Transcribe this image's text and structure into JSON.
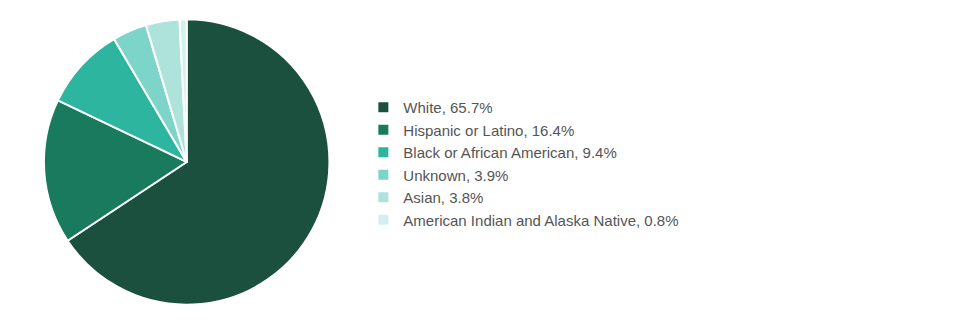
{
  "chart_data": {
    "type": "pie",
    "categories": [
      "White, 65.7%",
      "Hispanic or Latino, 16.4%",
      "Black or African American, 9.4%",
      "Unknown, 3.9%",
      "Asian, 3.8%",
      "American Indian and Alaska Native, 0.8%"
    ],
    "values": [
      65.7,
      16.4,
      9.4,
      3.9,
      3.8,
      0.8
    ],
    "colors": [
      "#1b4f3e",
      "#1a7a5e",
      "#2db5a0",
      "#7dd4c8",
      "#aee3db",
      "#d4eff0"
    ],
    "legend": "right"
  }
}
